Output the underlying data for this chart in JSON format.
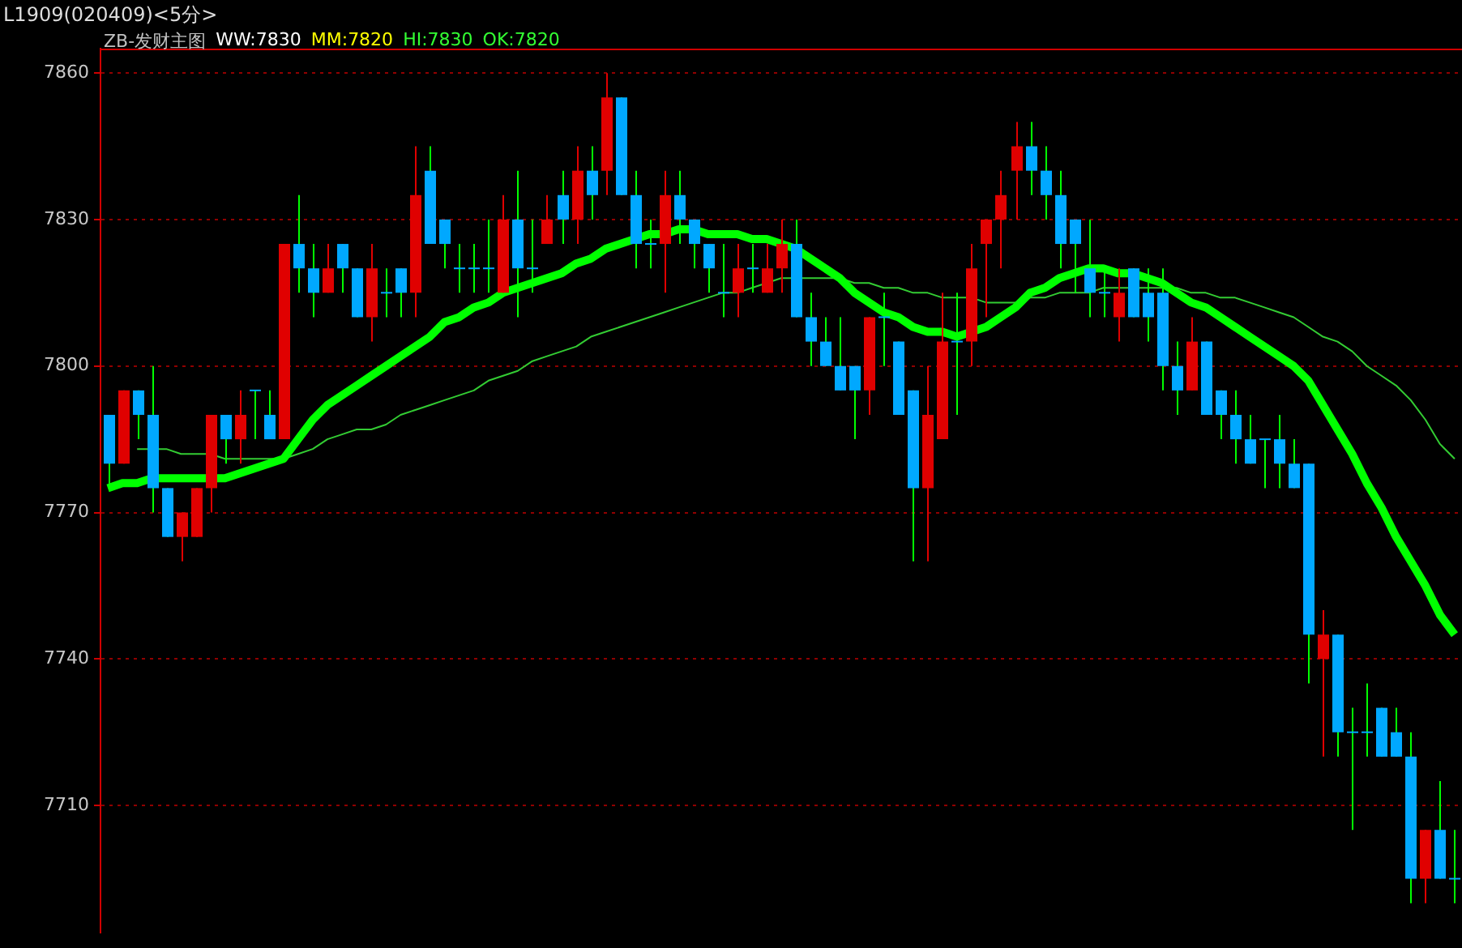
{
  "chart_data": {
    "type": "candlestick",
    "title": "L1909(020409)<5分>",
    "subtitle": "ZB-发财主图",
    "annotations": [
      "WW:7830",
      "MM:7820",
      "HI:7830",
      "OK:7820"
    ],
    "categories": [
      null,
      null,
      null,
      null,
      null,
      null,
      null,
      null,
      null,
      null,
      null,
      null,
      null,
      null,
      null,
      null,
      null,
      null,
      null,
      null,
      null,
      null,
      null,
      null,
      null,
      null,
      null,
      null,
      null,
      null,
      null,
      null,
      null,
      null,
      null,
      null,
      null,
      null,
      null,
      null,
      null,
      null,
      null,
      null,
      null,
      null,
      null,
      null,
      null,
      null,
      null,
      null,
      null,
      null,
      null,
      null,
      null,
      null,
      null,
      null,
      null,
      null,
      null,
      null,
      null,
      null,
      null,
      null,
      null,
      null,
      null,
      null,
      null,
      null,
      null,
      null,
      null,
      null,
      null,
      null,
      null,
      null,
      null,
      null,
      null,
      null,
      null,
      null,
      null,
      null,
      null,
      null,
      null
    ],
    "ohlc": [
      [
        7790,
        7790,
        7775,
        7780
      ],
      [
        7780,
        7795,
        7780,
        7795
      ],
      [
        7795,
        7795,
        7785,
        7790
      ],
      [
        7790,
        7800,
        7770,
        7775
      ],
      [
        7775,
        7775,
        7765,
        7765
      ],
      [
        7765,
        7770,
        7760,
        7770
      ],
      [
        7765,
        7775,
        7765,
        7775
      ],
      [
        7775,
        7790,
        7770,
        7790
      ],
      [
        7790,
        7790,
        7780,
        7785
      ],
      [
        7785,
        7795,
        7780,
        7790
      ],
      [
        7795,
        7795,
        7785,
        7795
      ],
      [
        7790,
        7795,
        7785,
        7785
      ],
      [
        7785,
        7825,
        7785,
        7825
      ],
      [
        7825,
        7835,
        7815,
        7820
      ],
      [
        7820,
        7825,
        7810,
        7815
      ],
      [
        7815,
        7825,
        7815,
        7820
      ],
      [
        7825,
        7825,
        7815,
        7820
      ],
      [
        7820,
        7820,
        7810,
        7810
      ],
      [
        7810,
        7825,
        7805,
        7820
      ],
      [
        7815,
        7820,
        7810,
        7815
      ],
      [
        7820,
        7820,
        7810,
        7815
      ],
      [
        7815,
        7845,
        7810,
        7835
      ],
      [
        7840,
        7845,
        7825,
        7825
      ],
      [
        7830,
        7830,
        7820,
        7825
      ],
      [
        7820,
        7825,
        7815,
        7820
      ],
      [
        7820,
        7825,
        7815,
        7820
      ],
      [
        7820,
        7830,
        7815,
        7820
      ],
      [
        7815,
        7835,
        7815,
        7830
      ],
      [
        7830,
        7840,
        7810,
        7820
      ],
      [
        7820,
        7830,
        7815,
        7820
      ],
      [
        7825,
        7835,
        7825,
        7830
      ],
      [
        7835,
        7840,
        7825,
        7830
      ],
      [
        7830,
        7845,
        7825,
        7840
      ],
      [
        7840,
        7845,
        7830,
        7835
      ],
      [
        7840,
        7860,
        7835,
        7855
      ],
      [
        7855,
        7855,
        7835,
        7835
      ],
      [
        7835,
        7840,
        7820,
        7825
      ],
      [
        7825,
        7830,
        7820,
        7825
      ],
      [
        7825,
        7840,
        7815,
        7835
      ],
      [
        7835,
        7840,
        7825,
        7830
      ],
      [
        7830,
        7830,
        7820,
        7825
      ],
      [
        7825,
        7825,
        7815,
        7820
      ],
      [
        7815,
        7825,
        7810,
        7815
      ],
      [
        7815,
        7825,
        7810,
        7820
      ],
      [
        7820,
        7825,
        7815,
        7820
      ],
      [
        7815,
        7825,
        7815,
        7820
      ],
      [
        7820,
        7830,
        7815,
        7825
      ],
      [
        7825,
        7830,
        7810,
        7810
      ],
      [
        7810,
        7815,
        7800,
        7805
      ],
      [
        7805,
        7810,
        7800,
        7800
      ],
      [
        7800,
        7810,
        7795,
        7795
      ],
      [
        7800,
        7800,
        7785,
        7795
      ],
      [
        7795,
        7810,
        7790,
        7810
      ],
      [
        7810,
        7815,
        7800,
        7810
      ],
      [
        7805,
        7805,
        7790,
        7790
      ],
      [
        7795,
        7795,
        7760,
        7775
      ],
      [
        7775,
        7800,
        7760,
        7790
      ],
      [
        7785,
        7815,
        7785,
        7805
      ],
      [
        7805,
        7815,
        7790,
        7805
      ],
      [
        7805,
        7825,
        7800,
        7820
      ],
      [
        7825,
        7830,
        7810,
        7830
      ],
      [
        7830,
        7840,
        7820,
        7835
      ],
      [
        7840,
        7850,
        7830,
        7845
      ],
      [
        7845,
        7850,
        7835,
        7840
      ],
      [
        7840,
        7845,
        7830,
        7835
      ],
      [
        7835,
        7840,
        7820,
        7825
      ],
      [
        7830,
        7830,
        7815,
        7825
      ],
      [
        7820,
        7830,
        7810,
        7815
      ],
      [
        7815,
        7820,
        7810,
        7815
      ],
      [
        7810,
        7820,
        7805,
        7815
      ],
      [
        7820,
        7820,
        7810,
        7810
      ],
      [
        7815,
        7820,
        7805,
        7810
      ],
      [
        7815,
        7820,
        7795,
        7800
      ],
      [
        7800,
        7805,
        7790,
        7795
      ],
      [
        7795,
        7810,
        7795,
        7805
      ],
      [
        7805,
        7805,
        7790,
        7790
      ],
      [
        7795,
        7795,
        7785,
        7790
      ],
      [
        7790,
        7795,
        7780,
        7785
      ],
      [
        7785,
        7790,
        7780,
        7780
      ],
      [
        7785,
        7785,
        7775,
        7785
      ],
      [
        7785,
        7790,
        7775,
        7780
      ],
      [
        7780,
        7785,
        7775,
        7775
      ],
      [
        7780,
        7780,
        7735,
        7745
      ],
      [
        7740,
        7750,
        7720,
        7745
      ],
      [
        7745,
        7745,
        7720,
        7725
      ],
      [
        7725,
        7730,
        7705,
        7725
      ],
      [
        7725,
        7735,
        7720,
        7725
      ],
      [
        7730,
        7730,
        7720,
        7720
      ],
      [
        7725,
        7730,
        7720,
        7720
      ],
      [
        7720,
        7725,
        7690,
        7695
      ],
      [
        7695,
        7705,
        7690,
        7705
      ],
      [
        7705,
        7715,
        7695,
        7695
      ],
      [
        7695,
        7705,
        7690,
        7695
      ]
    ],
    "colors": [
      "#00a8ff",
      "#e00000",
      "#00a8ff",
      "#00a8ff",
      "#00a8ff",
      "#e00000",
      "#e00000",
      "#e00000",
      "#00a8ff",
      "#e00000",
      "#00a8ff",
      "#00a8ff",
      "#e00000",
      "#00a8ff",
      "#00a8ff",
      "#e00000",
      "#00a8ff",
      "#00a8ff",
      "#e00000",
      "#00a8ff",
      "#00a8ff",
      "#e00000",
      "#00a8ff",
      "#00a8ff",
      "#00a8ff",
      "#00a8ff",
      "#00a8ff",
      "#e00000",
      "#00a8ff",
      "#00a8ff",
      "#e00000",
      "#00a8ff",
      "#e00000",
      "#00a8ff",
      "#e00000",
      "#00a8ff",
      "#00a8ff",
      "#00a8ff",
      "#e00000",
      "#00a8ff",
      "#00a8ff",
      "#00a8ff",
      "#00a8ff",
      "#e00000",
      "#00a8ff",
      "#e00000",
      "#e00000",
      "#00a8ff",
      "#00a8ff",
      "#00a8ff",
      "#00a8ff",
      "#00a8ff",
      "#e00000",
      "#00a8ff",
      "#00a8ff",
      "#00a8ff",
      "#e00000",
      "#e00000",
      "#00a8ff",
      "#e00000",
      "#e00000",
      "#e00000",
      "#e00000",
      "#00a8ff",
      "#00a8ff",
      "#00a8ff",
      "#00a8ff",
      "#00a8ff",
      "#00a8ff",
      "#e00000",
      "#00a8ff",
      "#00a8ff",
      "#00a8ff",
      "#00a8ff",
      "#e00000",
      "#00a8ff",
      "#00a8ff",
      "#00a8ff",
      "#00a8ff",
      "#00a8ff",
      "#00a8ff",
      "#00a8ff",
      "#00a8ff",
      "#e00000",
      "#00a8ff",
      "#00a8ff",
      "#00a8ff",
      "#00a8ff",
      "#00a8ff",
      "#00a8ff",
      "#e00000",
      "#00a8ff",
      "#00a8ff"
    ],
    "series": [
      {
        "type": "line",
        "color": "#00ff00",
        "values": [
          7775,
          7776,
          7776,
          7777,
          7777,
          7777,
          7777,
          7777,
          7777,
          7778,
          7779,
          7780,
          7781,
          7785,
          7789,
          7792,
          7794,
          7796,
          7798,
          7800,
          7802,
          7804,
          7806,
          7809,
          7810,
          7812,
          7813,
          7815,
          7816,
          7817,
          7818,
          7819,
          7821,
          7822,
          7824,
          7825,
          7826,
          7827,
          7827,
          7828,
          7828,
          7827,
          7827,
          7827,
          7826,
          7826,
          7825,
          7824,
          7822,
          7820,
          7818,
          7815,
          7813,
          7811,
          7810,
          7808,
          7807,
          7807,
          7806,
          7807,
          7808,
          7810,
          7812,
          7815,
          7816,
          7818,
          7819,
          7820,
          7820,
          7819,
          7819,
          7818,
          7817,
          7815,
          7813,
          7812,
          7810,
          7808,
          7806,
          7804,
          7802,
          7800,
          7797,
          7792,
          7787,
          7782,
          7776,
          7771,
          7765,
          7760,
          7755,
          7749,
          7745
        ]
      },
      {
        "type": "line",
        "color": "#33cc33",
        "values": [
          null,
          null,
          7783,
          7783,
          7783,
          7782,
          7782,
          7782,
          7781,
          7781,
          7781,
          7781,
          7781,
          7782,
          7783,
          7785,
          7786,
          7787,
          7787,
          7788,
          7790,
          7791,
          7792,
          7793,
          7794,
          7795,
          7797,
          7798,
          7799,
          7801,
          7802,
          7803,
          7804,
          7806,
          7807,
          7808,
          7809,
          7810,
          7811,
          7812,
          7813,
          7814,
          7815,
          7815,
          7816,
          7817,
          7818,
          7818,
          7818,
          7818,
          7818,
          7817,
          7817,
          7816,
          7816,
          7815,
          7815,
          7814,
          7814,
          7814,
          7813,
          7813,
          7813,
          7814,
          7814,
          7815,
          7815,
          7815,
          7816,
          7816,
          7816,
          7816,
          7816,
          7816,
          7815,
          7815,
          7814,
          7814,
          7813,
          7812,
          7811,
          7810,
          7808,
          7806,
          7805,
          7803,
          7800,
          7798,
          7796,
          7793,
          7789,
          7784,
          7781
        ]
      }
    ],
    "ylim": [
      7684,
      7865
    ],
    "yticks": [
      7860,
      7830,
      7800,
      7770,
      7740,
      7710
    ],
    "grid": "y",
    "legend": false,
    "tick_labels": "y",
    "marker": "none"
  }
}
